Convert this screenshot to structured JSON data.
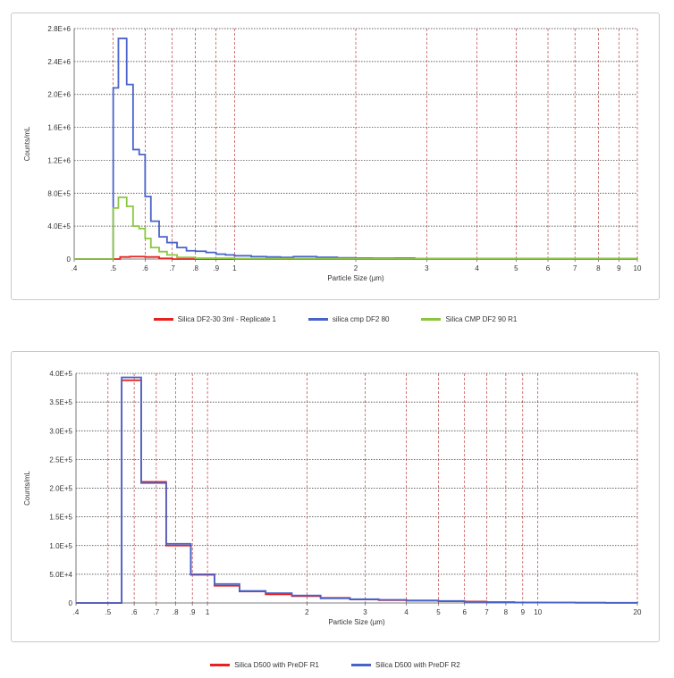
{
  "chart_data": [
    {
      "type": "line",
      "ylabel": "Counts/mL",
      "xlabel": "Particle Size (µm)",
      "xscale": "log",
      "xlim": [
        0.4,
        10
      ],
      "ylim": [
        0,
        2800000
      ],
      "yticks": [
        0,
        400000,
        800000,
        1200000,
        1600000,
        2000000,
        2400000,
        2800000
      ],
      "ytick_labels": [
        "0",
        "4.0E+5",
        "8.0E+5",
        "1.2E+6",
        "1.6E+6",
        "2.0E+6",
        "2.4E+6",
        "2.8E+6"
      ],
      "xticks": [
        0.4,
        0.5,
        0.6,
        0.7,
        0.8,
        0.9,
        1,
        2,
        3,
        4,
        5,
        6,
        7,
        8,
        9,
        10
      ],
      "xtick_labels": [
        ".4",
        ".5",
        ".6",
        ".7",
        ".8",
        ".9",
        "1",
        "2",
        "3",
        "4",
        "5",
        "6",
        "7",
        "8",
        "9",
        "10"
      ],
      "grid": {
        "vertical_color": "#b22222",
        "vertical_style": "dashed",
        "horizontal_color": "#333333",
        "horizontal_style": "dotted"
      },
      "legend_position": "bottom",
      "series": [
        {
          "name": "Silica DF2-30 3ml - Replicate 1",
          "color": "#e8201f",
          "x": [
            0.4,
            0.5,
            0.52,
            0.55,
            0.6,
            0.65,
            0.7,
            10
          ],
          "values": [
            0,
            0,
            25000,
            30000,
            25000,
            8000,
            0,
            0
          ]
        },
        {
          "name": "silica cmp DF2 80",
          "color": "#4a63c9",
          "x": [
            0.4,
            0.5,
            0.515,
            0.54,
            0.56,
            0.58,
            0.6,
            0.62,
            0.65,
            0.68,
            0.72,
            0.76,
            0.8,
            0.85,
            0.9,
            0.95,
            1.0,
            1.1,
            1.2,
            1.3,
            1.4,
            1.6,
            1.8,
            2.0,
            2.2,
            2.5,
            2.8,
            10
          ],
          "values": [
            0,
            2080000,
            2680000,
            2120000,
            1330000,
            1270000,
            760000,
            460000,
            270000,
            200000,
            140000,
            100000,
            95000,
            80000,
            60000,
            50000,
            40000,
            30000,
            25000,
            20000,
            30000,
            22000,
            15000,
            12000,
            10000,
            12000,
            5000,
            0
          ]
        },
        {
          "name": "Silica CMP DF2 90 R1",
          "color": "#8cc63f",
          "x": [
            0.4,
            0.5,
            0.515,
            0.54,
            0.56,
            0.58,
            0.6,
            0.62,
            0.65,
            0.68,
            0.72,
            0.8,
            1.0,
            10
          ],
          "values": [
            0,
            620000,
            750000,
            640000,
            400000,
            370000,
            250000,
            140000,
            90000,
            50000,
            20000,
            10000,
            5000,
            0
          ]
        }
      ]
    },
    {
      "type": "line",
      "ylabel": "Counts/mL",
      "xlabel": "Particle Size (µm)",
      "xscale": "log",
      "xlim": [
        0.4,
        20
      ],
      "ylim": [
        0,
        400000
      ],
      "yticks": [
        0,
        50000,
        100000,
        150000,
        200000,
        250000,
        300000,
        350000,
        400000
      ],
      "ytick_labels": [
        "0",
        "5.0E+4",
        "1.0E+5",
        "1.5E+5",
        "2.0E+5",
        "2.5E+5",
        "3.0E+5",
        "3.5E+5",
        "4.0E+5"
      ],
      "xticks": [
        0.4,
        0.5,
        0.6,
        0.7,
        0.8,
        0.9,
        1,
        2,
        3,
        4,
        5,
        6,
        7,
        8,
        9,
        10,
        20
      ],
      "xtick_labels": [
        ".4",
        ".5",
        ".6",
        ".7",
        ".8",
        ".9",
        "1",
        "2",
        "3",
        "4",
        "5",
        "6",
        "7",
        "8",
        "9",
        "10",
        "20"
      ],
      "grid": {
        "vertical_color": "#b22222",
        "vertical_style": "dashed",
        "horizontal_color": "#333333",
        "horizontal_style": "dotted"
      },
      "legend_position": "bottom",
      "series": [
        {
          "name": "Silica D500 with PreDF R1",
          "color": "#e8201f",
          "x": [
            0.4,
            0.55,
            0.63,
            0.75,
            0.89,
            1.05,
            1.25,
            1.5,
            1.8,
            2.2,
            2.7,
            3.3,
            4.0,
            5.0,
            6.0,
            7.0,
            8.5,
            10.5,
            13,
            16,
            20
          ],
          "values": [
            0,
            388000,
            211000,
            100000,
            49000,
            30000,
            20000,
            15000,
            12000,
            9000,
            6000,
            5000,
            4000,
            3000,
            2500,
            1500,
            1000,
            800,
            500,
            300,
            0
          ]
        },
        {
          "name": "Silica D500 with PreDF R2",
          "color": "#4a63c9",
          "x": [
            0.4,
            0.55,
            0.63,
            0.75,
            0.89,
            1.05,
            1.25,
            1.5,
            1.8,
            2.2,
            2.7,
            3.3,
            4.0,
            5.0,
            6.0,
            7.0,
            8.5,
            10.5,
            13,
            16,
            20
          ],
          "values": [
            0,
            393000,
            209000,
            103000,
            50000,
            33000,
            21000,
            17000,
            13000,
            8000,
            6500,
            5500,
            4500,
            3500,
            2000,
            1200,
            900,
            600,
            400,
            200,
            0
          ]
        }
      ]
    }
  ]
}
